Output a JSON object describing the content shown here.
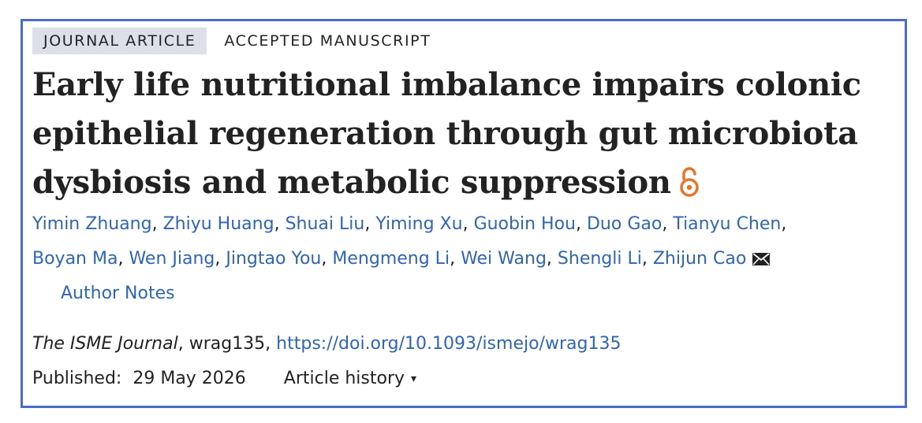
{
  "badges": {
    "journal": "JOURNAL ARTICLE",
    "accepted": "ACCEPTED MANUSCRIPT"
  },
  "title": "Early life nutritional imbalance impairs colonic epithelial regeneration through gut microbiota dysbiosis and metabolic suppression",
  "authors": [
    "Yimin Zhuang",
    "Zhiyu Huang",
    "Shuai Liu",
    "Yiming Xu",
    "Guobin Hou",
    "Duo Gao",
    "Tianyu Chen",
    "Boyan Ma",
    "Wen Jiang",
    "Jingtao You",
    "Mengmeng Li",
    "Wei Wang",
    "Shengli Li",
    "Zhijun Cao"
  ],
  "author_notes": "Author Notes",
  "citation": {
    "journal": "The ISME Journal",
    "id": ", wrag135, ",
    "doi": "https://doi.org/10.1093/ismejo/wrag135"
  },
  "published": {
    "label": "Published:",
    "date": "29 May 2026"
  },
  "history": {
    "label": "Article history",
    "caret": "▾"
  },
  "colors": {
    "border": "#4a6ec5",
    "link": "#2f66b3",
    "badge_bg": "#dde1e7",
    "open_access": "#e8742a"
  },
  "icons": {
    "open_access": "open-access-lock-icon",
    "mail": "envelope-icon"
  }
}
